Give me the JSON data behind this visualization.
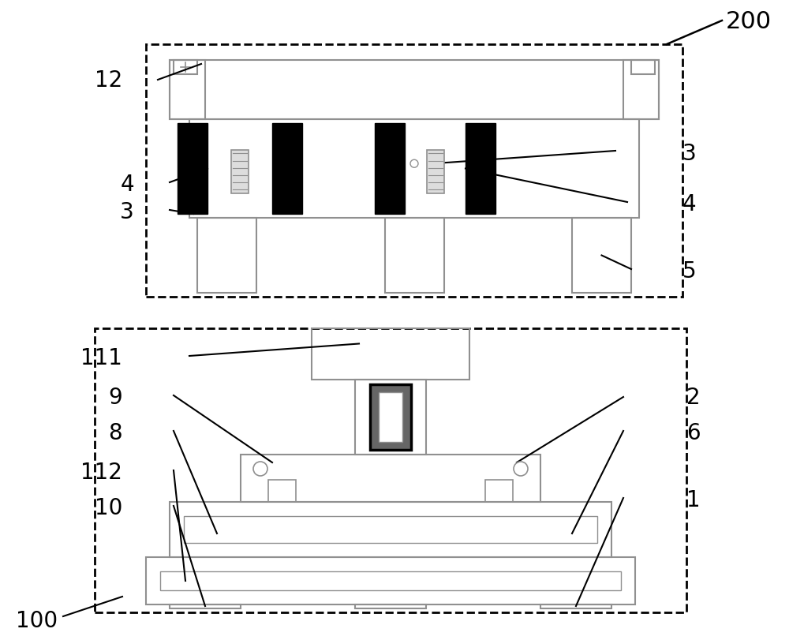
{
  "bg_color": "#ffffff",
  "line_color": "#000000",
  "gray_color": "#909090",
  "fig_width": 10.0,
  "fig_height": 8.12,
  "dpi": 100
}
